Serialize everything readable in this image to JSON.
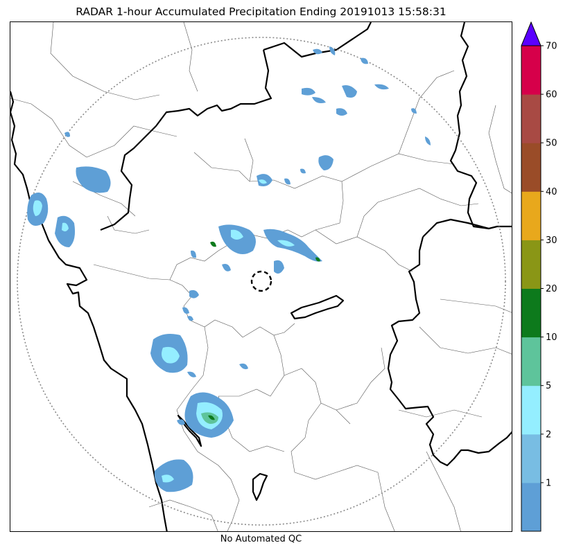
{
  "title": "RADAR 1-hour Accumulated Precipitation Ending 20191013 15:58:31",
  "footer": "No Automated QC",
  "colorbar": {
    "tick_labels": [
      "1",
      "2",
      "5",
      "10",
      "20",
      "30",
      "40",
      "50",
      "60",
      "70"
    ],
    "colors": [
      "#5e9fd6",
      "#78bde3",
      "#94eeff",
      "#5ec49b",
      "#0d7a1c",
      "#8a9616",
      "#e8a81c",
      "#9a4c28",
      "#a84a44",
      "#d6004a"
    ],
    "extend_color": "#5a00ff"
  },
  "map": {
    "radar_marker_icon": "dashed-circle-icon",
    "range_ring_icon": "dotted-range-ring-icon"
  }
}
